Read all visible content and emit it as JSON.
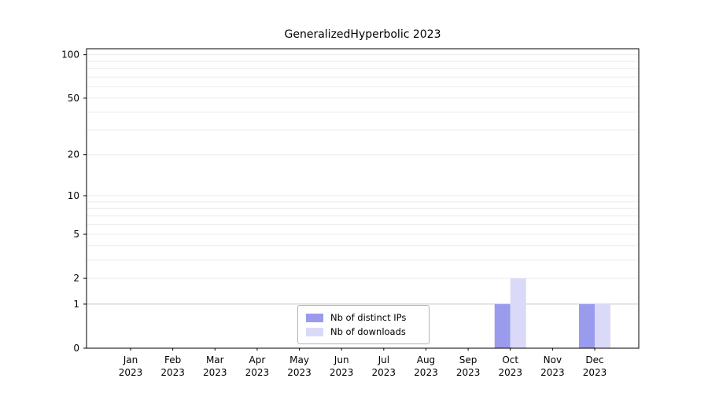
{
  "chart_data": {
    "type": "bar",
    "title": "GeneralizedHyperbolic 2023",
    "scale": "log1p",
    "ytop": 110,
    "yticks": [
      0,
      1,
      2,
      5,
      10,
      20,
      50,
      100
    ],
    "minor_gridlines": [
      3,
      4,
      6,
      7,
      8,
      9,
      30,
      40,
      60,
      70,
      80,
      90
    ],
    "x_labels": [
      [
        "Jan",
        "2023"
      ],
      [
        "Feb",
        "2023"
      ],
      [
        "Mar",
        "2023"
      ],
      [
        "Apr",
        "2023"
      ],
      [
        "May",
        "2023"
      ],
      [
        "Jun",
        "2023"
      ],
      [
        "Jul",
        "2023"
      ],
      [
        "Aug",
        "2023"
      ],
      [
        "Sep",
        "2023"
      ],
      [
        "Oct",
        "2023"
      ],
      [
        "Nov",
        "2023"
      ],
      [
        "Dec",
        "2023"
      ]
    ],
    "series": [
      {
        "name": "Nb of distinct IPs",
        "color": "#9b9bee",
        "values": [
          0,
          0,
          0,
          0,
          0,
          0,
          0,
          0,
          0,
          1,
          0,
          1
        ]
      },
      {
        "name": "Nb of downloads",
        "color": "#dadaf8",
        "values": [
          0,
          0,
          0,
          0,
          0,
          0,
          0,
          0,
          0,
          2,
          0,
          1
        ]
      }
    ],
    "legend_position": "bottom-center",
    "colors": {
      "axis": "#000000",
      "gridline_minor": "#ececec",
      "gridline_unit": "#c8c8c8",
      "background": "#ffffff"
    }
  }
}
